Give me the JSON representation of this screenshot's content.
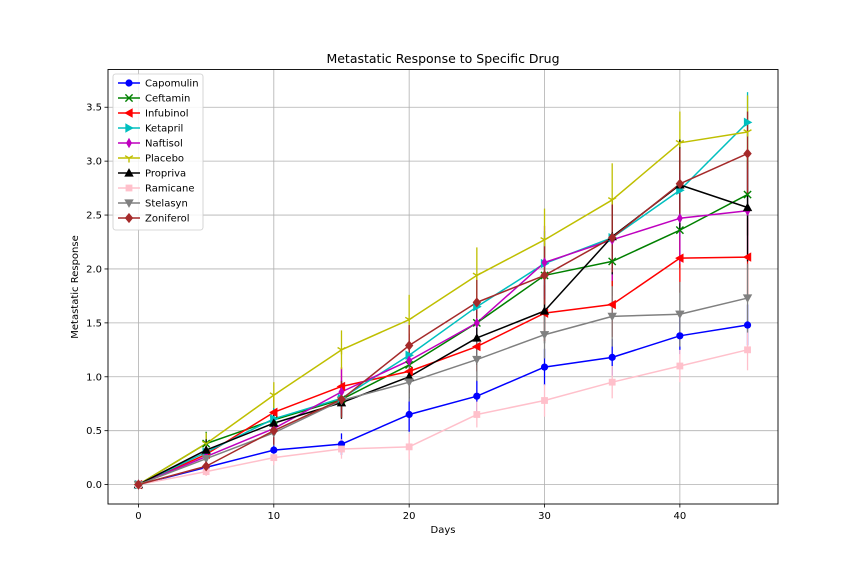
{
  "chart_data": {
    "type": "line",
    "title": "Metastatic Response to Specific Drug",
    "xlabel": "Days",
    "ylabel": "Metastatic Response",
    "xlim": [
      -2.25,
      47.25
    ],
    "ylim": [
      -0.18,
      3.85
    ],
    "x_ticks": [
      "0",
      "10",
      "20",
      "30",
      "40"
    ],
    "y_ticks": [
      "0.0",
      "0.5",
      "1.0",
      "1.5",
      "2.0",
      "2.5",
      "3.0",
      "3.5"
    ],
    "grid": true,
    "legend_position": "top-left",
    "x": [
      0,
      5,
      10,
      15,
      20,
      25,
      30,
      35,
      40,
      45
    ],
    "series": [
      {
        "name": "Capomulin",
        "color": "#0000ff",
        "marker": "circle",
        "values": [
          0,
          0.16,
          0.32,
          0.375,
          0.65,
          0.82,
          1.09,
          1.18,
          1.38,
          1.48
        ],
        "errors": [
          0,
          0.07,
          0.09,
          0.1,
          0.16,
          0.15,
          0.17,
          0.17,
          0.17,
          0.19
        ]
      },
      {
        "name": "Ceftamin",
        "color": "#008000",
        "marker": "x",
        "values": [
          0,
          0.38,
          0.6,
          0.79,
          1.11,
          1.5,
          1.94,
          2.07,
          2.36,
          2.69
        ],
        "errors": [
          0,
          0.11,
          0.14,
          0.17,
          0.2,
          0.25,
          0.3,
          0.32,
          0.35,
          0.38
        ]
      },
      {
        "name": "Infubinol",
        "color": "#ff0000",
        "marker": "triangle-left",
        "values": [
          0,
          0.28,
          0.67,
          0.91,
          1.05,
          1.28,
          1.59,
          1.67,
          2.1,
          2.11
        ],
        "errors": [
          0,
          0.09,
          0.14,
          0.18,
          0.2,
          0.23,
          0.26,
          0.3,
          0.32,
          0.36
        ]
      },
      {
        "name": "Ketapril",
        "color": "#00bfbf",
        "marker": "triangle-right",
        "values": [
          0,
          0.3,
          0.61,
          0.8,
          1.2,
          1.65,
          2.05,
          2.29,
          2.73,
          3.36
        ],
        "errors": [
          0,
          0.1,
          0.15,
          0.17,
          0.2,
          0.25,
          0.3,
          0.35,
          0.42,
          0.28
        ]
      },
      {
        "name": "Naftisol",
        "color": "#bf00bf",
        "marker": "thin-diamond",
        "values": [
          0,
          0.26,
          0.52,
          0.86,
          1.15,
          1.5,
          2.06,
          2.27,
          2.47,
          2.54
        ],
        "errors": [
          0,
          0.09,
          0.14,
          0.22,
          0.25,
          0.3,
          0.34,
          0.38,
          0.42,
          0.45
        ]
      },
      {
        "name": "Placebo",
        "color": "#bfbf00",
        "marker": "tri-down",
        "values": [
          0,
          0.38,
          0.83,
          1.25,
          1.53,
          1.94,
          2.27,
          2.64,
          3.17,
          3.27
        ],
        "errors": [
          0,
          0.1,
          0.12,
          0.18,
          0.23,
          0.26,
          0.29,
          0.34,
          0.29,
          0.34
        ]
      },
      {
        "name": "Propriva",
        "color": "#000000",
        "marker": "triangle-up",
        "values": [
          0,
          0.32,
          0.57,
          0.76,
          1.0,
          1.36,
          1.61,
          2.3,
          2.78,
          2.57
        ],
        "errors": [
          0,
          0.1,
          0.12,
          0.15,
          0.2,
          0.25,
          0.3,
          0.35,
          0.42,
          0.5
        ]
      },
      {
        "name": "Ramicane",
        "color": "#ffc0cb",
        "marker": "square",
        "values": [
          0,
          0.12,
          0.25,
          0.33,
          0.35,
          0.65,
          0.78,
          0.95,
          1.1,
          1.25
        ],
        "errors": [
          0,
          0.04,
          0.07,
          0.09,
          0.12,
          0.12,
          0.15,
          0.15,
          0.15,
          0.19
        ]
      },
      {
        "name": "Stelasyn",
        "color": "#808080",
        "marker": "triangle-down",
        "values": [
          0,
          0.24,
          0.48,
          0.78,
          0.95,
          1.16,
          1.39,
          1.56,
          1.58,
          1.73
        ],
        "errors": [
          0,
          0.09,
          0.12,
          0.14,
          0.18,
          0.2,
          0.22,
          0.28,
          0.3,
          0.32
        ]
      },
      {
        "name": "Zoniferol",
        "color": "#a52a2a",
        "marker": "diamond",
        "values": [
          0,
          0.17,
          0.5,
          0.79,
          1.29,
          1.69,
          1.94,
          2.29,
          2.79,
          3.07
        ],
        "errors": [
          0,
          0.08,
          0.13,
          0.17,
          0.19,
          0.21,
          0.27,
          0.32,
          0.33,
          0.39
        ]
      }
    ]
  }
}
